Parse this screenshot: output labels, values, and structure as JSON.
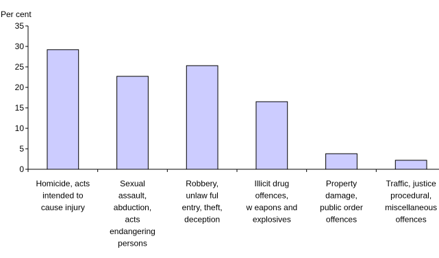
{
  "chart_data": {
    "type": "bar",
    "ylabel": "Per cent",
    "ylim": [
      0,
      35
    ],
    "yticks": [
      0,
      5,
      10,
      15,
      20,
      25,
      30,
      35
    ],
    "categories": [
      "Homicide, acts intended to cause injury",
      "Sexual assault, abduction, acts endangering persons",
      "Robbery, unlaw ful entry, theft, deception",
      "Illicit drug offences, w eapons and explosives",
      "Property damage, public order offences",
      "Traffic, justice procedural, miscellaneous offences"
    ],
    "category_lines": [
      [
        "Homicide, acts",
        "intended to",
        "cause injury"
      ],
      [
        "Sexual",
        "assault,",
        "abduction,",
        "acts",
        "endangering",
        "persons"
      ],
      [
        "Robbery,",
        "unlaw ful",
        "entry, theft,",
        "deception"
      ],
      [
        "Illicit drug",
        "offences,",
        "w eapons and",
        "explosives"
      ],
      [
        "Property",
        "damage,",
        "public order",
        "offences"
      ],
      [
        "Traffic, justice",
        "procedural,",
        "miscellaneous",
        "offences"
      ]
    ],
    "values": [
      29.2,
      22.7,
      25.3,
      16.5,
      3.8,
      2.2
    ],
    "grid": false,
    "legend": "none",
    "colors": {
      "bar_fill": "#ccccff",
      "bar_stroke": "#000000",
      "axis": "#000000"
    }
  }
}
